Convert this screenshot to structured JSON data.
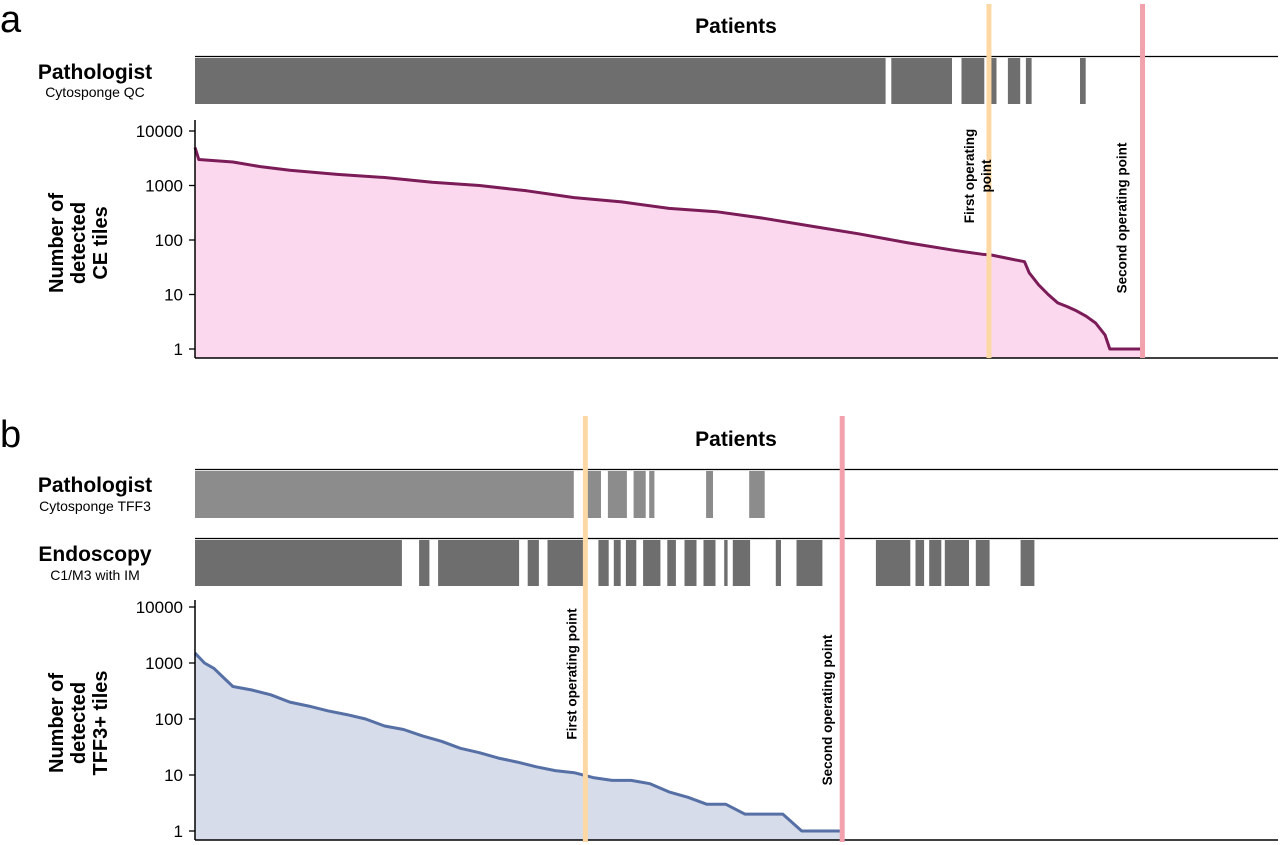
{
  "panels": [
    {
      "letter": "a",
      "patients_label": "Patients",
      "tracks": [
        {
          "title": "Pathologist",
          "subtitle": "Cytosponge QC",
          "color": "#6e6e6e",
          "segments": [
            [
              0,
              0.7285
            ],
            [
              0.7345,
              0.7985
            ],
            [
              0.8085,
              0.8325
            ],
            [
              0.8395,
              0.8455
            ],
            [
              0.8575,
              0.8705
            ],
            [
              0.8765,
              0.8825
            ],
            [
              0.9335,
              0.9395
            ]
          ]
        }
      ],
      "operating_points": [
        {
          "label_lines": [
            "First operating",
            "point"
          ],
          "x": 0.8375,
          "color": "#fcd9a4"
        },
        {
          "label_lines": [
            "Second operating point"
          ],
          "x": 0.9995,
          "color": "#f2a2ad"
        }
      ],
      "chart_data": {
        "type": "area",
        "ylabel_lines": [
          "Number of",
          "detected",
          "CE tiles"
        ],
        "yscale": "log",
        "ylim": [
          0.7,
          13000
        ],
        "yticks": [
          1,
          10,
          100,
          1000,
          10000
        ],
        "ytick_labels": [
          "1",
          "10",
          "100",
          "1000",
          "10000"
        ],
        "line_color": "#7b1c58",
        "fill_color": "#fcd8ee",
        "x": [
          0,
          0.004,
          0.04,
          0.07,
          0.1,
          0.15,
          0.2,
          0.25,
          0.3,
          0.35,
          0.4,
          0.45,
          0.5,
          0.55,
          0.6,
          0.65,
          0.7,
          0.75,
          0.8,
          0.83,
          0.84,
          0.86,
          0.875,
          0.88,
          0.89,
          0.9,
          0.91,
          0.92,
          0.93,
          0.94,
          0.95,
          0.96,
          0.965,
          0.97,
          0.98,
          0.99,
          1.0
        ],
        "y": [
          5000,
          3000,
          2700,
          2200,
          1900,
          1600,
          1400,
          1150,
          1000,
          800,
          600,
          500,
          380,
          330,
          250,
          180,
          130,
          90,
          65,
          55,
          53,
          45,
          40,
          25,
          15,
          10,
          7,
          6,
          5,
          4,
          3,
          1.8,
          1,
          1,
          1,
          1,
          1
        ]
      }
    },
    {
      "letter": "b",
      "patients_label": "Patients",
      "tracks": [
        {
          "title": "Pathologist",
          "subtitle": "Cytosponge TFF3",
          "color": "#8c8c8c",
          "segments": [
            [
              0,
              0.3996
            ],
            [
              0.41,
              0.4282
            ],
            [
              0.4355,
              0.4555
            ],
            [
              0.4627,
              0.4755
            ],
            [
              0.4791,
              0.4846
            ],
            [
              0.5391,
              0.5464
            ],
            [
              0.5846,
              0.6009
            ]
          ]
        },
        {
          "title": "Endoscopy",
          "subtitle": "C1/M3 with IM",
          "color": "#6e6e6e",
          "segments": [
            [
              0,
              0.2182
            ],
            [
              0.2364,
              0.2473
            ],
            [
              0.2564,
              0.3418
            ],
            [
              0.3509,
              0.3627
            ],
            [
              0.3718,
              0.4109
            ],
            [
              0.4255,
              0.4364
            ],
            [
              0.4418,
              0.4491
            ],
            [
              0.4545,
              0.4655
            ],
            [
              0.4727,
              0.4909
            ],
            [
              0.4982,
              0.5073
            ],
            [
              0.5164,
              0.5291
            ],
            [
              0.5364,
              0.5491
            ],
            [
              0.5582,
              0.5618
            ],
            [
              0.5673,
              0.5855
            ],
            [
              0.6127,
              0.6182
            ],
            [
              0.6345,
              0.6618
            ],
            [
              0.7182,
              0.7545
            ],
            [
              0.76,
              0.7691
            ],
            [
              0.7745,
              0.7873
            ],
            [
              0.7909,
              0.8164
            ],
            [
              0.8236,
              0.8382
            ],
            [
              0.8709,
              0.8855
            ]
          ]
        }
      ],
      "operating_points": [
        {
          "label_lines": [
            "First operating point"
          ],
          "x": 0.4118,
          "color": "#fcd9a4"
        },
        {
          "label_lines": [
            "Second operating point"
          ],
          "x": 0.6827,
          "color": "#f2a2ad"
        }
      ],
      "chart_data": {
        "type": "area",
        "ylabel_lines": [
          "Number of",
          "detected",
          "TFF3+ tiles"
        ],
        "yscale": "log",
        "ylim": [
          0.7,
          13000
        ],
        "yticks": [
          1,
          10,
          100,
          1000,
          10000
        ],
        "ytick_labels": [
          "1",
          "10",
          "100",
          "1000",
          "10000"
        ],
        "line_color": "#5670a5",
        "fill_color": "#d6dcea",
        "x": [
          0,
          0.01,
          0.02,
          0.03,
          0.04,
          0.06,
          0.08,
          0.1,
          0.12,
          0.14,
          0.16,
          0.18,
          0.2,
          0.22,
          0.24,
          0.26,
          0.28,
          0.3,
          0.32,
          0.34,
          0.36,
          0.38,
          0.4,
          0.42,
          0.44,
          0.46,
          0.48,
          0.5,
          0.52,
          0.54,
          0.56,
          0.58,
          0.6,
          0.62,
          0.64,
          0.66,
          0.68,
          0.6827
        ],
        "y": [
          1500,
          1000,
          800,
          550,
          380,
          330,
          270,
          200,
          170,
          140,
          120,
          100,
          75,
          65,
          50,
          40,
          30,
          25,
          20,
          17,
          14,
          12,
          11,
          9,
          8,
          8,
          7,
          5,
          4,
          3,
          3,
          2,
          2,
          2,
          1,
          1,
          1,
          1
        ]
      }
    }
  ]
}
